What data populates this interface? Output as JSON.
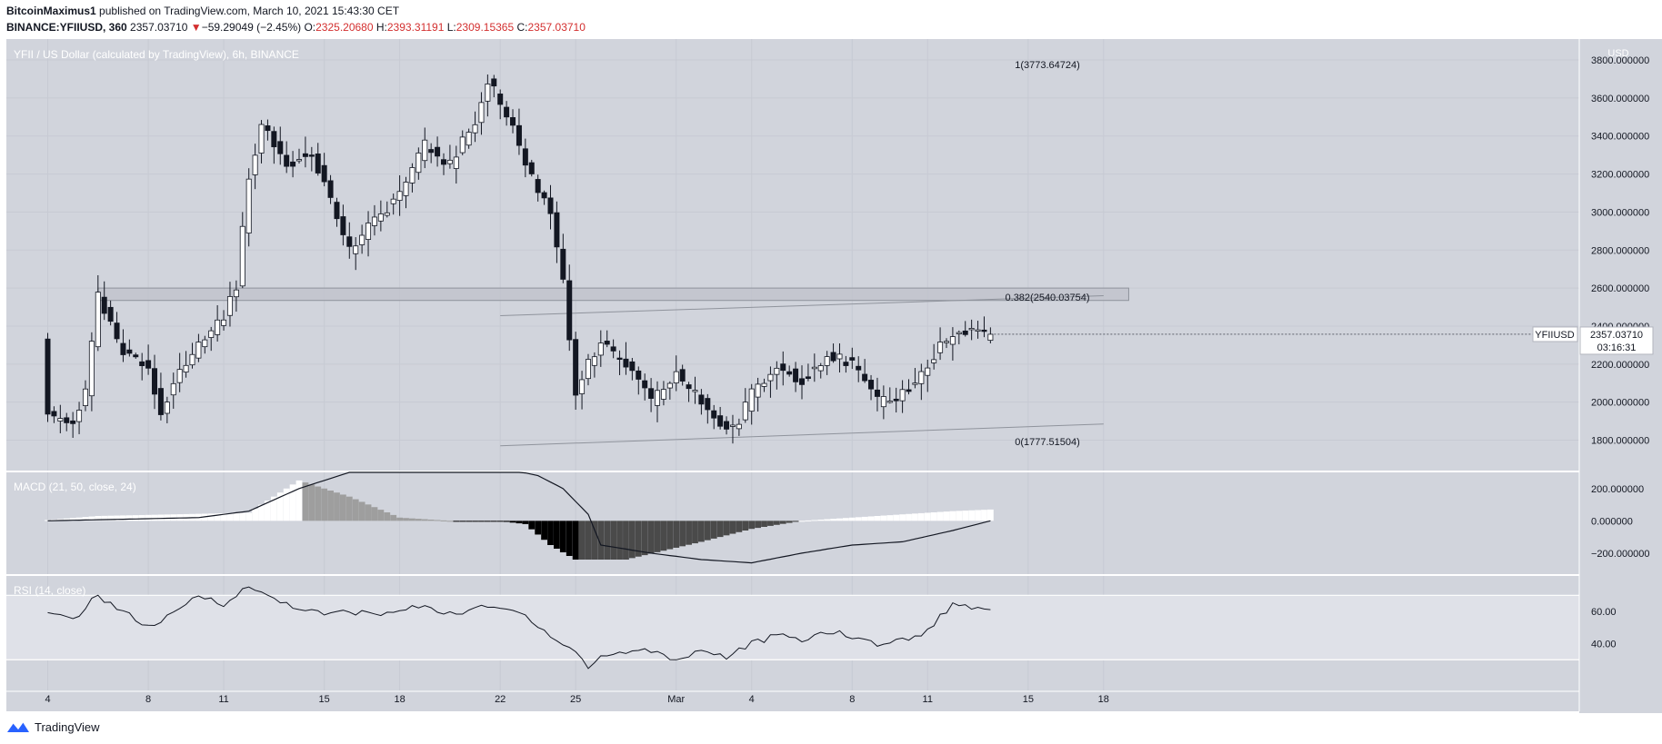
{
  "header": {
    "author": "BitcoinMaximus1",
    "published_text": "published on TradingView.com, March 10, 2021 15:43:30 CET",
    "symbol_line": "BINANCE:YFIIUSD, 360",
    "last": "2357.03710",
    "change_arrow": "▼",
    "change": "−59.29049 (−2.45%)",
    "o_label": "O:",
    "o": "2325.20680",
    "h_label": "H:",
    "h": "2393.31191",
    "l_label": "L:",
    "l": "2309.15365",
    "c_label": "C:",
    "c": "2357.03710"
  },
  "footer": {
    "brand": "TradingView"
  },
  "colors": {
    "panel_bg": "#d1d4dc",
    "rsi_band": "#dfe1e8",
    "candle_up": "#ffffff",
    "candle_down": "#131722",
    "hist_dark": "#000000",
    "hist_mid": "#4a4a4a",
    "hist_light": "#9e9e9e",
    "hist_white": "#ffffff"
  },
  "chart_data": {
    "type": "candlestick",
    "title": "YFII / US Dollar (calculated by TradingView), 6h, BINANCE",
    "currency": "USD",
    "price_axis": {
      "range": [
        1640,
        3910
      ],
      "ticks": [
        "3800.000000",
        "3600.000000",
        "3400.000000",
        "3200.000000",
        "3000.000000",
        "2800.000000",
        "2600.000000",
        "2400.000000",
        "2200.000000",
        "2000.000000",
        "1800.000000"
      ],
      "tick_values": [
        3800,
        3600,
        3400,
        3200,
        3000,
        2800,
        2600,
        2400,
        2200,
        2000,
        1800
      ]
    },
    "x_axis": {
      "labels": [
        "4",
        "8",
        "11",
        "15",
        "18",
        "22",
        "25",
        "Mar",
        "4",
        "8",
        "11",
        "15",
        "18"
      ],
      "dates": [
        "2021-02-04",
        "2021-02-08",
        "2021-02-11",
        "2021-02-15",
        "2021-02-18",
        "2021-02-22",
        "2021-02-25",
        "2021-03-01",
        "2021-03-04",
        "2021-03-08",
        "2021-03-11",
        "2021-03-15",
        "2021-03-18"
      ]
    },
    "last_price_label": {
      "symbol": "YFIIUSD",
      "price": "2357.03710",
      "countdown": "03:16:31",
      "value": 2357.0371
    },
    "fib_levels": [
      {
        "label": "1(3773.64724)",
        "value": 3773.64724
      },
      {
        "label": "0.382(2540.03754)",
        "value": 2540.03754
      },
      {
        "label": "0(1777.51504)",
        "value": 1777.51504
      }
    ],
    "resistance_zone": {
      "low": 2535,
      "high": 2600,
      "from": "2021-02-06",
      "to": "2021-03-19"
    },
    "channel_upper": {
      "from": [
        "2021-02-22",
        2455
      ],
      "to": [
        "2021-03-18",
        2560
      ]
    },
    "channel_lower": {
      "from": [
        "2021-02-22",
        1770
      ],
      "to": [
        "2021-03-18",
        1885
      ]
    },
    "macd": {
      "title": "MACD (21, 50, close, 24)",
      "range": [
        -330,
        300
      ],
      "ticks": [
        "200.000000",
        "0.000000",
        "−200.000000"
      ],
      "tick_values": [
        200,
        0,
        -200
      ]
    },
    "rsi": {
      "title": "RSI (14, close)",
      "range": [
        11,
        82
      ],
      "band": [
        30,
        70
      ],
      "ticks": [
        "60.00",
        "40.00"
      ],
      "tick_values": [
        60,
        40
      ]
    }
  }
}
